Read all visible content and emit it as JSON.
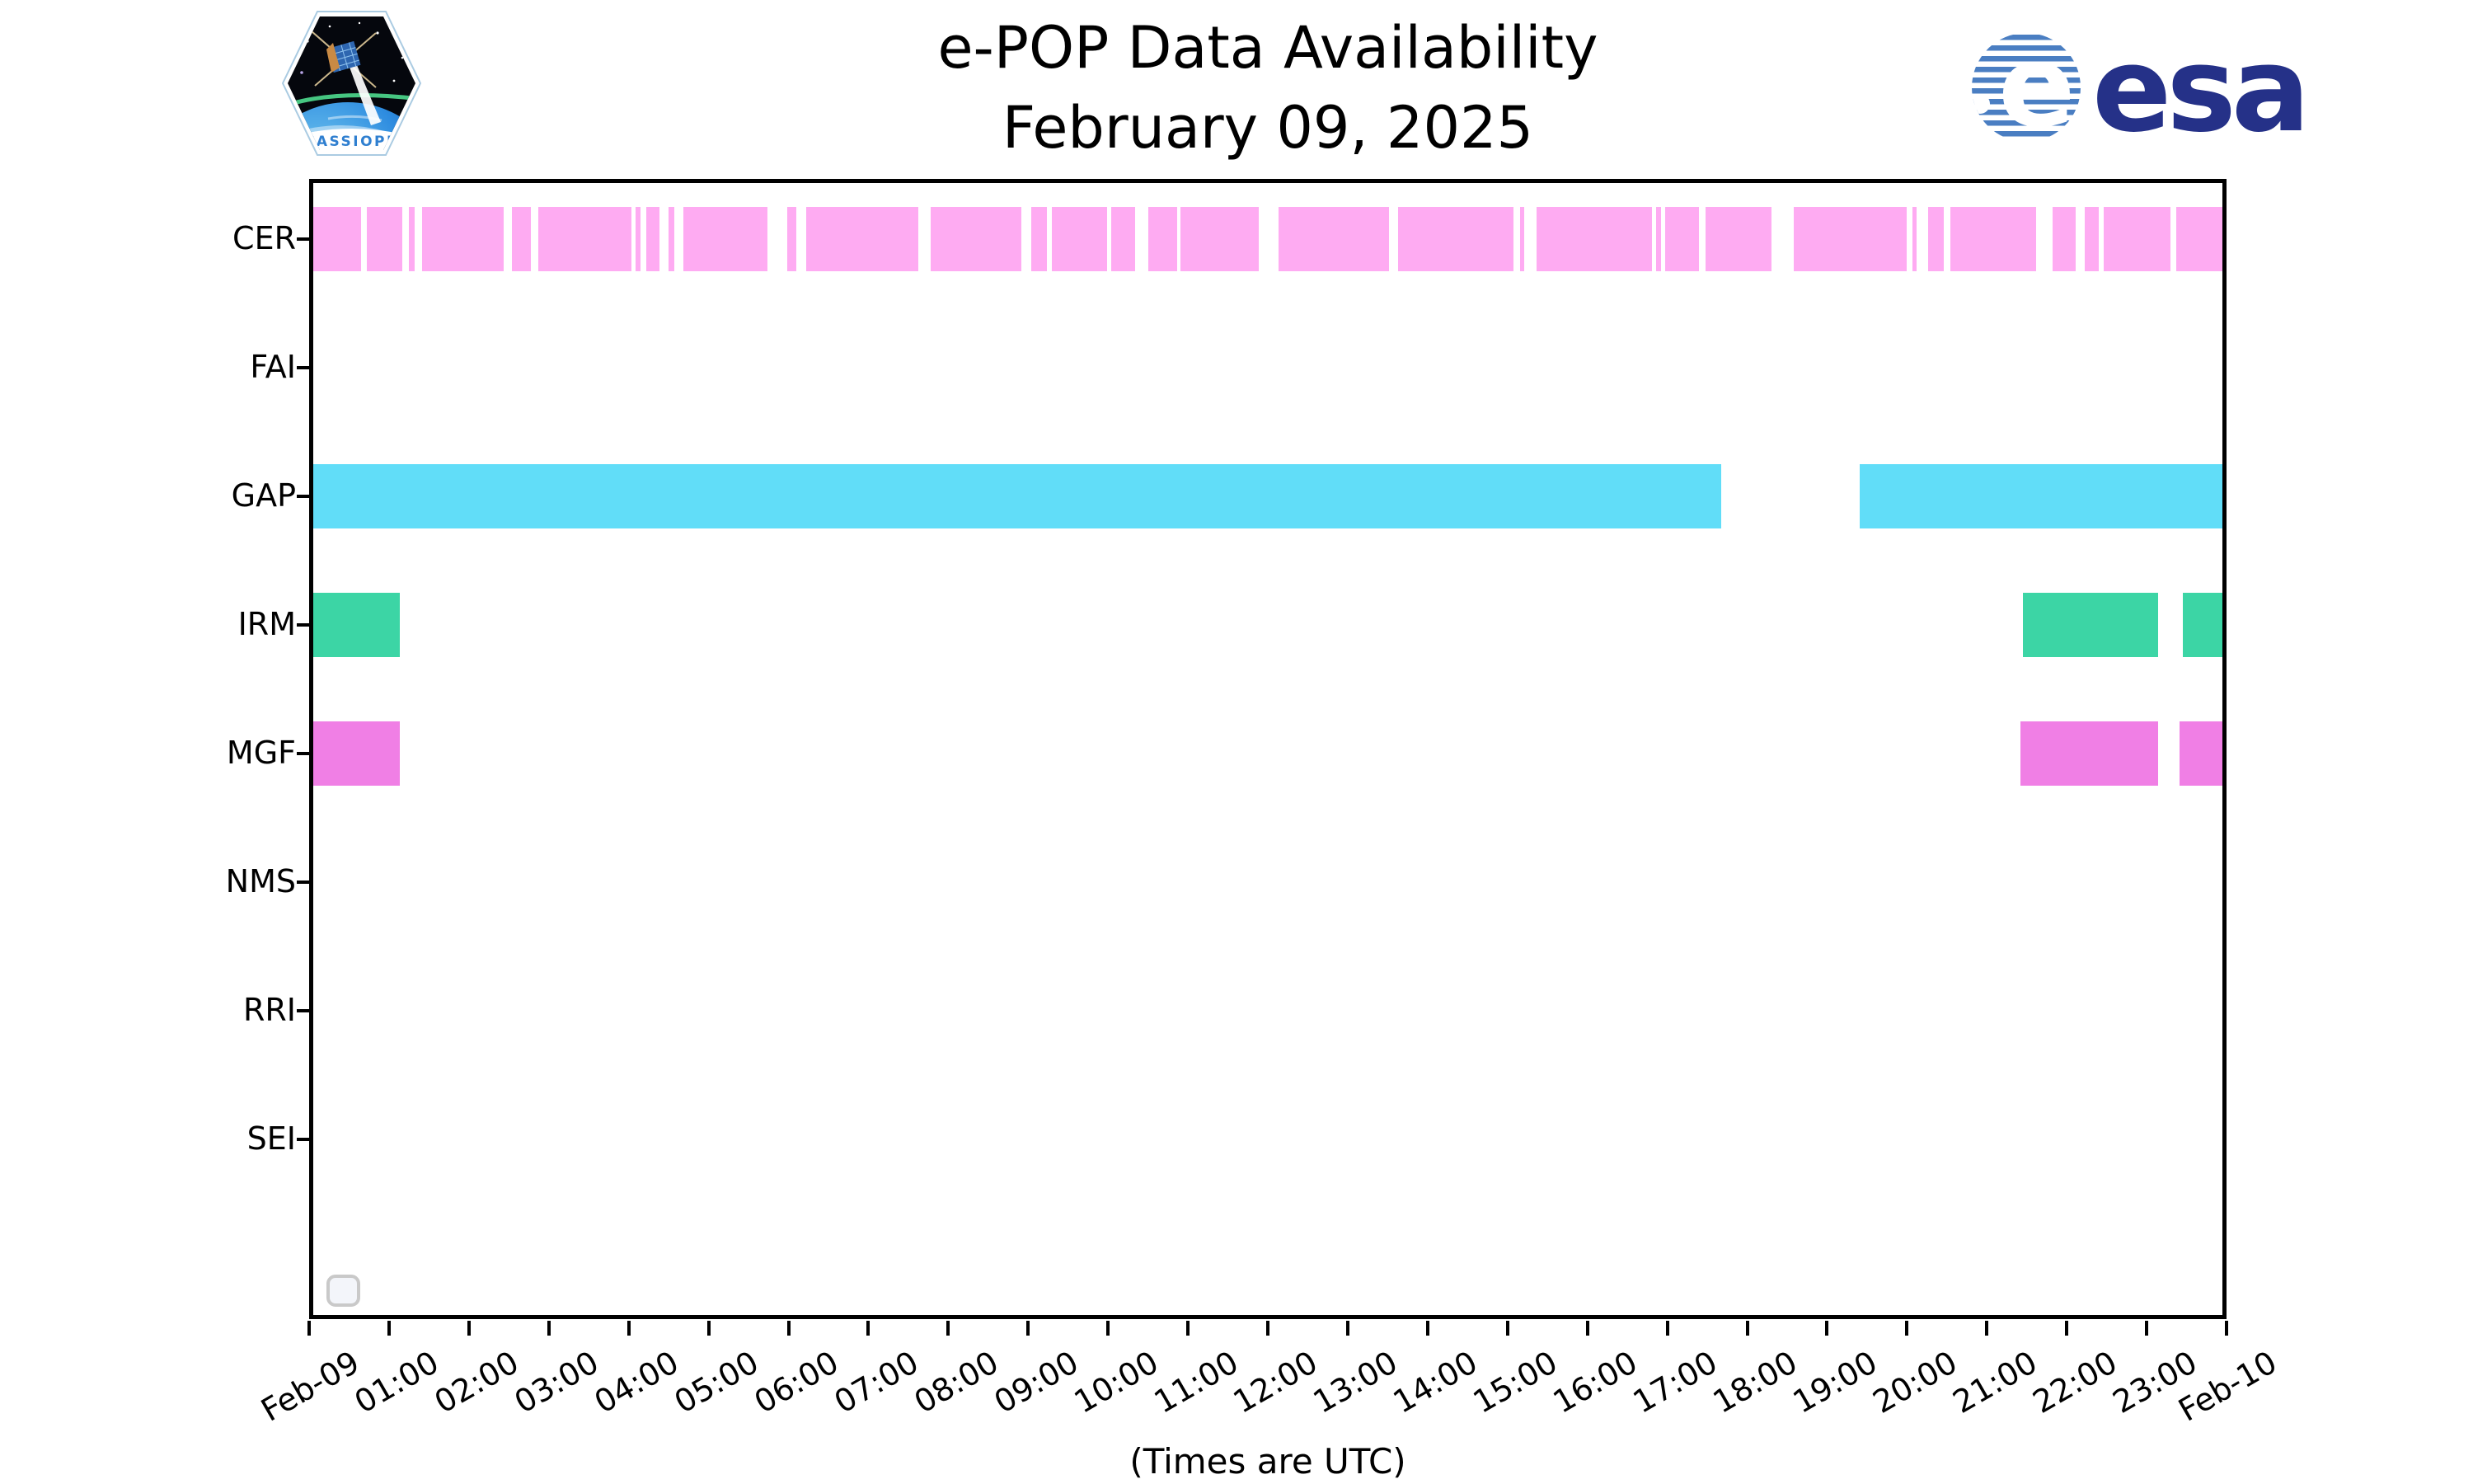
{
  "logos": {
    "cassiope": "CASSIOPE",
    "esa": "esa"
  },
  "colors": {
    "cer_pink": "#FEABF2",
    "gap_cyan": "#61DDF8",
    "irm_green": "#3CD5A5",
    "mgf_magenta": "#F07FE5",
    "axis_black": "#000000",
    "esa_navy": "#253188",
    "esa_stripe_blue": "#4A7EC2",
    "cassiope_text_blue": "#2F7FD0",
    "legend_border_gray": "#C9C9C9"
  },
  "chart_data": {
    "type": "timeline-broken-barh",
    "title": "e-POP Data Availability",
    "subtitle": "February 09, 2025",
    "caption": "(Times are UTC)",
    "xlim_hours": [
      0,
      24
    ],
    "grid": false,
    "x_tick_labels": [
      "Feb-09",
      "01:00",
      "02:00",
      "03:00",
      "04:00",
      "05:00",
      "06:00",
      "07:00",
      "08:00",
      "09:00",
      "10:00",
      "11:00",
      "12:00",
      "13:00",
      "14:00",
      "15:00",
      "16:00",
      "17:00",
      "18:00",
      "19:00",
      "20:00",
      "21:00",
      "22:00",
      "23:00",
      "Feb-10"
    ],
    "rows": [
      {
        "label": "CER",
        "color": "#FEABF2",
        "segments": [
          [
            0.0,
            0.65
          ],
          [
            0.72,
            1.17
          ],
          [
            1.25,
            1.32
          ],
          [
            1.41,
            2.44
          ],
          [
            2.54,
            2.78
          ],
          [
            2.87,
            4.03
          ],
          [
            4.09,
            4.15
          ],
          [
            4.22,
            4.39
          ],
          [
            4.5,
            4.57
          ],
          [
            4.68,
            5.74
          ],
          [
            5.98,
            6.1
          ],
          [
            6.22,
            7.63
          ],
          [
            7.78,
            8.91
          ],
          [
            9.04,
            9.23
          ],
          [
            9.3,
            9.99
          ],
          [
            10.04,
            10.34
          ],
          [
            10.5,
            10.86
          ],
          [
            10.91,
            11.89
          ],
          [
            12.13,
            13.52
          ],
          [
            13.63,
            15.08
          ],
          [
            15.16,
            15.21
          ],
          [
            15.36,
            16.81
          ],
          [
            16.86,
            16.92
          ],
          [
            16.97,
            17.4
          ],
          [
            17.48,
            18.3
          ],
          [
            18.58,
            20.0
          ],
          [
            20.07,
            20.12
          ],
          [
            20.26,
            20.46
          ],
          [
            20.54,
            21.62
          ],
          [
            21.82,
            22.11
          ],
          [
            22.23,
            22.4
          ],
          [
            22.46,
            23.3
          ],
          [
            23.37,
            24.0
          ]
        ]
      },
      {
        "label": "FAI",
        "color": null,
        "segments": []
      },
      {
        "label": "GAP",
        "color": "#61DDF8",
        "segments": [
          [
            0.0,
            17.67
          ],
          [
            19.41,
            24.0
          ]
        ]
      },
      {
        "label": "IRM",
        "color": "#3CD5A5",
        "segments": [
          [
            0.0,
            1.14
          ],
          [
            21.45,
            23.14
          ],
          [
            23.45,
            24.0
          ]
        ]
      },
      {
        "label": "MGF",
        "color": "#F07FE5",
        "segments": [
          [
            0.0,
            1.14
          ],
          [
            21.42,
            23.14
          ],
          [
            23.41,
            24.0
          ]
        ]
      },
      {
        "label": "NMS",
        "color": null,
        "segments": []
      },
      {
        "label": "RRI",
        "color": null,
        "segments": []
      },
      {
        "label": "SEI",
        "color": null,
        "segments": []
      }
    ],
    "legend": {
      "visible": true,
      "entries": []
    }
  }
}
